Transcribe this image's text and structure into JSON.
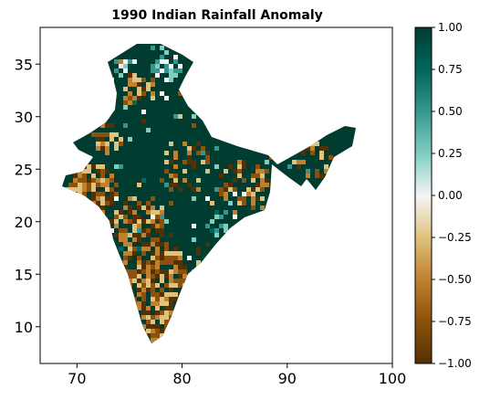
{
  "chart_data": {
    "type": "heatmap",
    "title": "1990 Indian Rainfall Anomaly",
    "xlabel": "",
    "ylabel": "",
    "xlim": [
      66.5,
      100
    ],
    "ylim": [
      6.5,
      38.5
    ],
    "x_ticks": [
      70,
      80,
      90,
      100
    ],
    "x_tick_labels": [
      "70",
      "80",
      "90",
      "100"
    ],
    "y_ticks": [
      10,
      15,
      20,
      25,
      30,
      35
    ],
    "y_tick_labels": [
      "10",
      "15",
      "20",
      "25",
      "30",
      "35"
    ],
    "colormap": "BrBG",
    "colorbar": {
      "vmin": -1.0,
      "vmax": 1.0,
      "ticks": [
        1.0,
        0.75,
        0.5,
        0.25,
        0.0,
        -0.25,
        -0.5,
        -0.75,
        -1.0
      ],
      "tick_labels": [
        "1.00",
        "0.75",
        "0.50",
        "0.25",
        "0.00",
        "−0.25",
        "−0.50",
        "−0.75",
        "−1.00"
      ],
      "placement": "right"
    },
    "colors": {
      "min": "#543005",
      "low": "#bf812d",
      "mid": "#f5f5f5",
      "high": "#35978f",
      "max": "#003c30"
    },
    "grid": false
  }
}
